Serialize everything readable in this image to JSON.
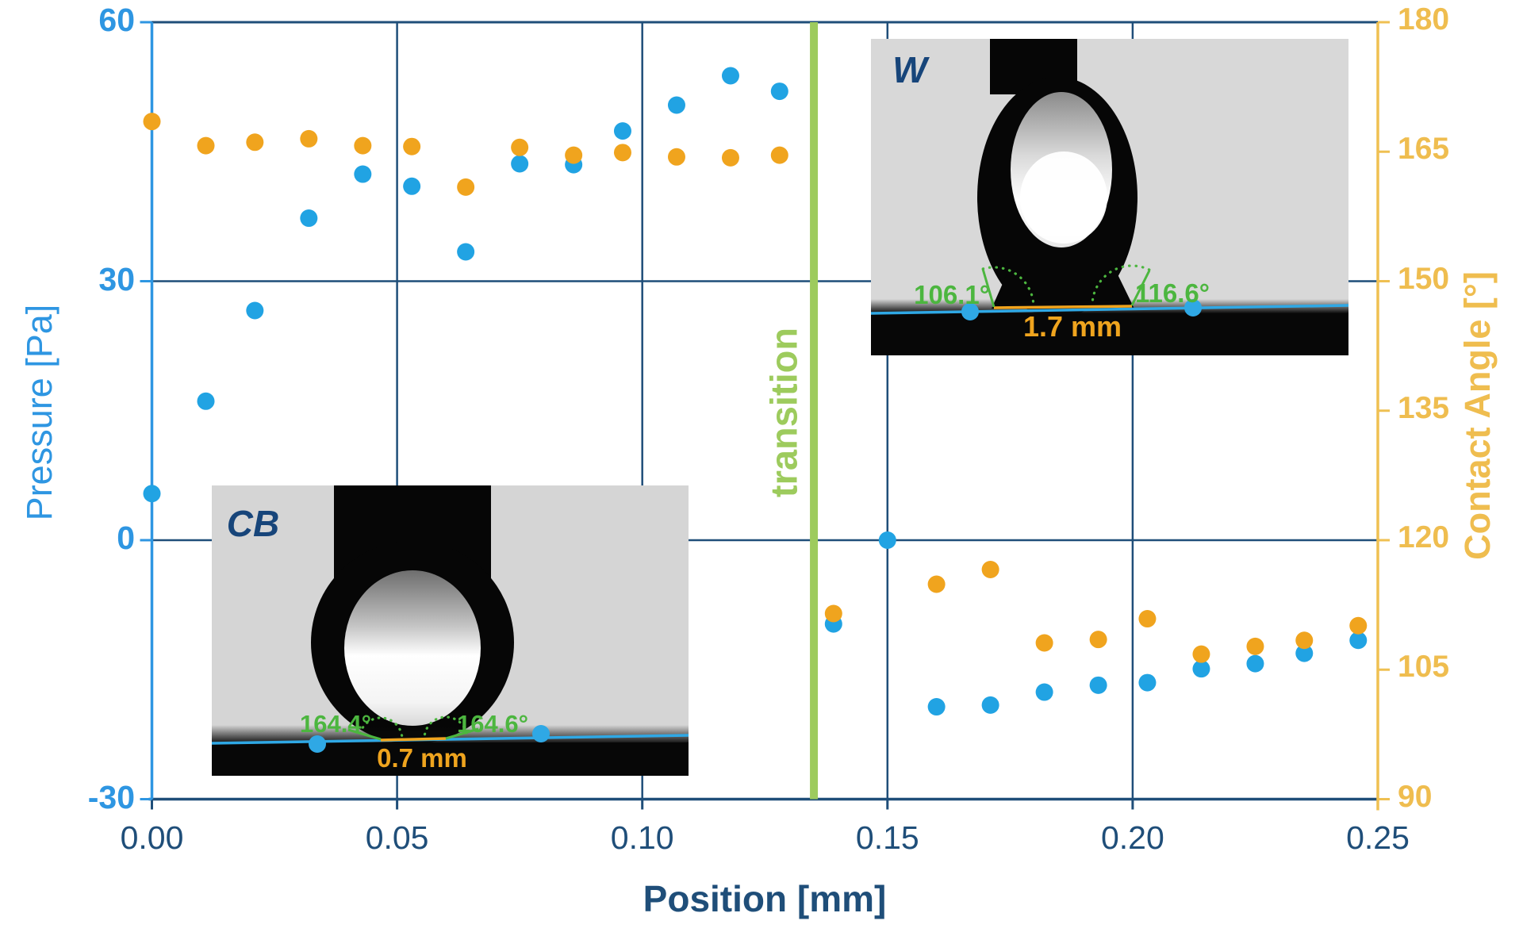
{
  "chart_data": {
    "type": "scatter",
    "xlabel": "Position [mm]",
    "ylabel_left": "Pressure [Pa]",
    "ylabel_right": "Contact Angle [°]",
    "x_min": 0.0,
    "x_max": 0.25,
    "x_ticks": [
      0.0,
      0.05,
      0.1,
      0.15,
      0.2,
      0.25
    ],
    "x_tick_labels": [
      "0.00",
      "0.05",
      "0.10",
      "0.15",
      "0.20",
      "0.25"
    ],
    "x_gridlines": [
      0.05,
      0.1,
      0.15,
      0.2
    ],
    "y_left": {
      "min": -30,
      "max": 60,
      "ticks": [
        60,
        30,
        0,
        -30
      ],
      "tick_labels": [
        "60",
        "30",
        "0",
        "-30"
      ],
      "gridline_values": [
        30,
        0
      ]
    },
    "y_right": {
      "min": 90,
      "max": 180,
      "ticks": [
        180,
        165,
        150,
        135,
        120,
        105,
        90
      ],
      "tick_labels": [
        "180",
        "165",
        "150",
        "135",
        "120",
        "105",
        "90"
      ]
    },
    "transition_x": 0.135,
    "transition_label": "transition",
    "grid": true,
    "legend": "none",
    "series": [
      {
        "name": "Pressure",
        "axis": "left",
        "color": "#21A3E3",
        "marker": "circle",
        "x": [
          0.0,
          0.011,
          0.021,
          0.032,
          0.043,
          0.053,
          0.064,
          0.075,
          0.086,
          0.096,
          0.107,
          0.118,
          0.128,
          0.139,
          0.15,
          0.16,
          0.171,
          0.182,
          0.193,
          0.203,
          0.214,
          0.225,
          0.235,
          0.246
        ],
        "values": [
          5.4,
          16.1,
          26.6,
          37.3,
          42.4,
          41.0,
          33.4,
          43.6,
          43.5,
          47.4,
          50.4,
          53.8,
          52.0,
          -9.7,
          0.0,
          -19.3,
          -19.1,
          -17.6,
          -16.8,
          -16.5,
          -14.9,
          -14.3,
          -13.1,
          -11.6
        ]
      },
      {
        "name": "Contact Angle",
        "axis": "right",
        "color": "#F0A41E",
        "marker": "circle",
        "x": [
          0.0,
          0.011,
          0.021,
          0.032,
          0.043,
          0.053,
          0.064,
          0.075,
          0.086,
          0.096,
          0.107,
          0.118,
          0.128,
          0.139,
          0.15,
          0.16,
          0.171,
          0.182,
          0.193,
          0.203,
          0.214,
          0.225,
          0.235,
          0.246
        ],
        "values": [
          168.5,
          165.7,
          166.1,
          166.5,
          165.7,
          165.6,
          160.9,
          165.5,
          164.6,
          164.9,
          164.4,
          164.3,
          164.6,
          111.5,
          null,
          114.9,
          116.6,
          108.1,
          108.5,
          110.9,
          106.8,
          107.7,
          108.4,
          110.1
        ]
      }
    ]
  },
  "insets": {
    "cb": {
      "label": "CB",
      "left_angle": "164.4°",
      "right_angle": "164.6°",
      "width_label": "0.7 mm"
    },
    "w": {
      "label": "W",
      "left_angle": "106.1°",
      "right_angle": "116.6°",
      "width_label": "1.7 mm"
    }
  },
  "colors": {
    "navy": "#1F4E79",
    "pressure_point": "#21A3E3",
    "pressure_axis": "#2E96E2",
    "angle_point": "#F0A41E",
    "angle_axis": "#EFC052",
    "angle_label": "#EFBD4F",
    "transition_green": "#9DCB5D",
    "inset_green": "#4CB63F"
  }
}
